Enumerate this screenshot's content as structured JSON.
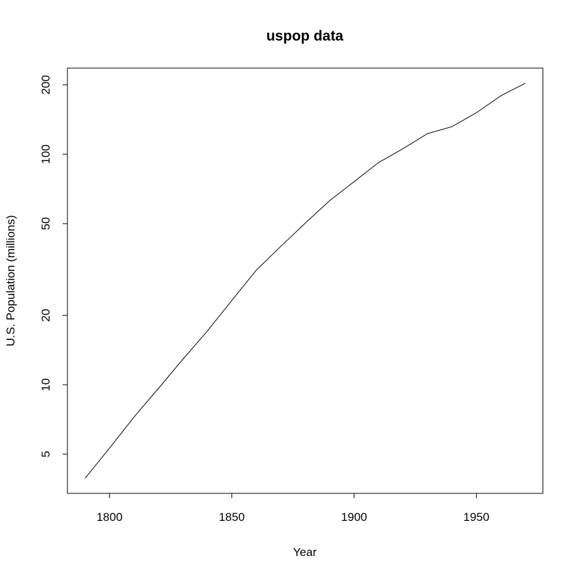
{
  "chart_data": {
    "type": "line",
    "title": "uspop data",
    "xlabel": "Year",
    "ylabel": "U.S. Population (millions)",
    "x": [
      1790,
      1800,
      1810,
      1820,
      1830,
      1840,
      1850,
      1860,
      1870,
      1880,
      1890,
      1900,
      1910,
      1920,
      1930,
      1940,
      1950,
      1960,
      1970
    ],
    "series": [
      {
        "values": [
          3.93,
          5.31,
          7.24,
          9.64,
          12.9,
          17.1,
          23.2,
          31.4,
          39.8,
          50.2,
          62.9,
          76.0,
          92.0,
          105.7,
          122.8,
          131.7,
          151.3,
          179.3,
          203.2
        ],
        "color": "#000000"
      }
    ],
    "xlim": [
      1782.8,
      1977.2
    ],
    "ylim": [
      3.38,
      236.3
    ],
    "y_scale": "log",
    "x_ticks": [
      1800,
      1850,
      1900,
      1950
    ],
    "y_ticks": [
      5,
      10,
      20,
      50,
      100,
      200
    ],
    "grid": false,
    "legend": "none"
  }
}
